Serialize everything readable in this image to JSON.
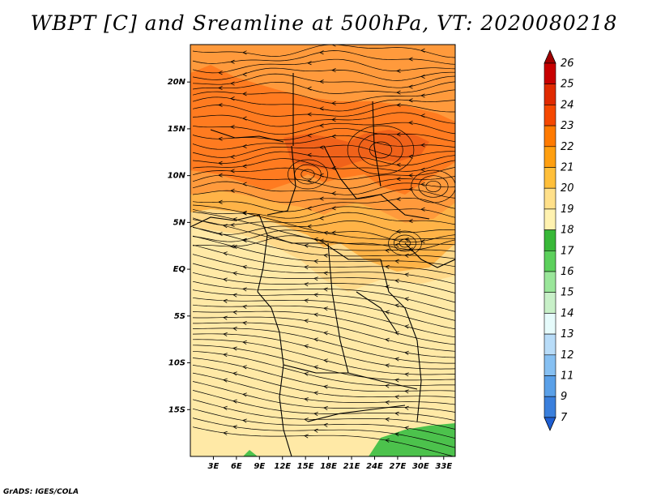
{
  "title": "WBPT [C] and Sreamline at 500hPa, VT: 2020080218",
  "credit": "GrADS: IGES/COLA",
  "map": {
    "lon_range": [
      0,
      34.5
    ],
    "lat_range": [
      -20,
      24
    ],
    "lon_ticks": [
      "3E",
      "6E",
      "9E",
      "12E",
      "15E",
      "18E",
      "21E",
      "24E",
      "27E",
      "30E",
      "33E"
    ],
    "lat_ticks": [
      "20N",
      "15N",
      "10N",
      "5N",
      "EQ",
      "5S",
      "10S",
      "15S"
    ],
    "features": [
      "WBPT shading",
      "500hPa streamlines",
      "country boundaries",
      "coastlines",
      "lakes"
    ]
  },
  "colorbar": {
    "levels": [
      "26",
      "25",
      "24",
      "23",
      "22",
      "21",
      "20",
      "19",
      "18",
      "17",
      "16",
      "15",
      "14",
      "13",
      "12",
      "11",
      "9",
      "7"
    ],
    "colors": [
      "#a00000",
      "#c80000",
      "#e02a00",
      "#f54800",
      "#ff7a00",
      "#ff9f10",
      "#ffbf3a",
      "#ffe08a",
      "#fff2b0",
      "#38b838",
      "#5cd05c",
      "#9ae69a",
      "#c8f0c8",
      "#e6fbfb",
      "#b8dcf8",
      "#86c0f2",
      "#5aa0e8",
      "#3a7fdc",
      "#1e5ed2"
    ]
  }
}
